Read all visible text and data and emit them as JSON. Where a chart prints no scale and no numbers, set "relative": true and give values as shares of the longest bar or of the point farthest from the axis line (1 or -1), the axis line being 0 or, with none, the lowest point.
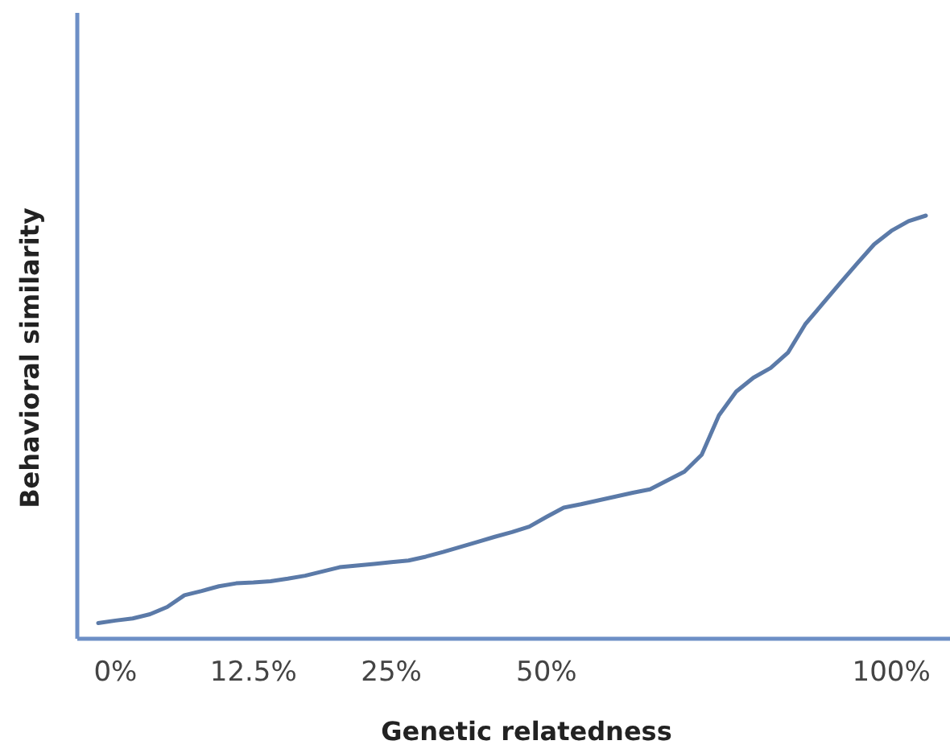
{
  "chart_data": {
    "type": "line",
    "xlabel": "Genetic relatedness",
    "ylabel": "Behavioral similarity",
    "relative": true,
    "categories": [
      null,
      "0%",
      null,
      null,
      null,
      null,
      null,
      null,
      null,
      "12.5%",
      null,
      null,
      null,
      null,
      null,
      null,
      null,
      "25%",
      null,
      null,
      null,
      null,
      null,
      null,
      null,
      null,
      "50%",
      null,
      null,
      null,
      null,
      null,
      null,
      null,
      null,
      null,
      null,
      null,
      null,
      null,
      null,
      null,
      null,
      null,
      null,
      null,
      "100%",
      null,
      null
    ],
    "series": [
      {
        "color": "#5b7aa8",
        "values": [
          0.037,
          0.043,
          0.048,
          0.058,
          0.075,
          0.103,
          0.113,
          0.124,
          0.131,
          0.133,
          0.136,
          0.142,
          0.149,
          0.159,
          0.169,
          0.173,
          0.177,
          0.181,
          0.185,
          0.194,
          0.205,
          0.217,
          0.229,
          0.241,
          0.252,
          0.265,
          0.288,
          0.31,
          0.318,
          0.327,
          0.336,
          0.345,
          0.353,
          0.374,
          0.395,
          0.435,
          0.528,
          0.584,
          0.617,
          0.64,
          0.676,
          0.743,
          0.791,
          0.839,
          0.886,
          0.932,
          0.964,
          0.987,
          1.0
        ]
      }
    ]
  }
}
